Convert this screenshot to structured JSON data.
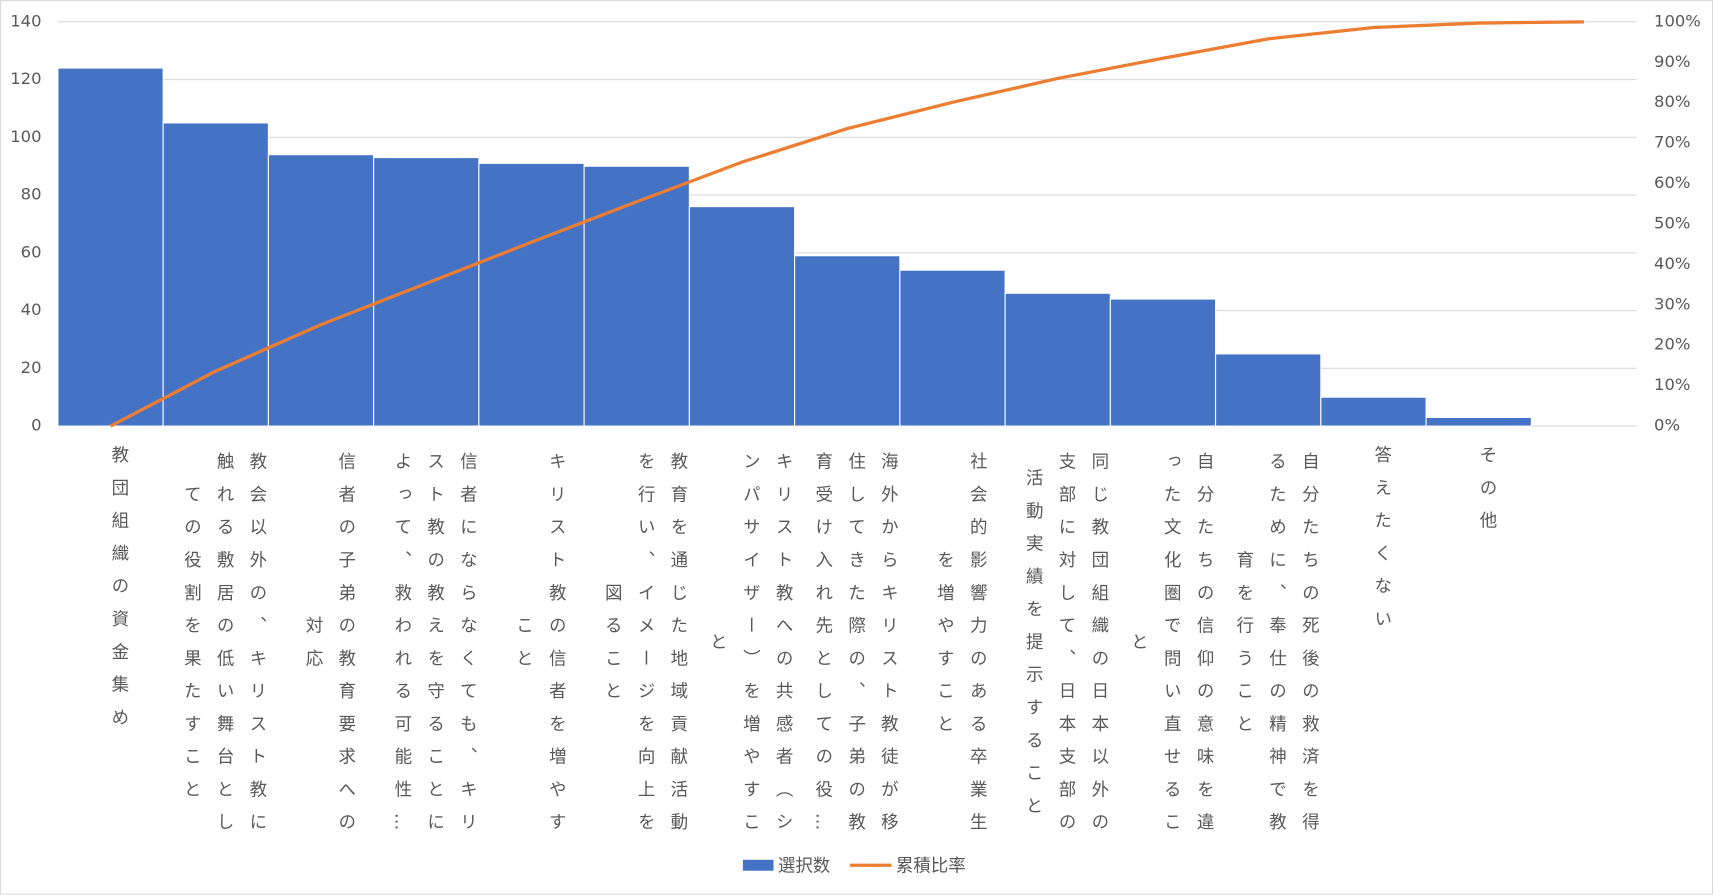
{
  "chart_data": {
    "type": "pareto",
    "categories": [
      "教団組織の資金集め",
      "教会以外の、キリスト教に触れる敷居の低い舞台としての役割を果たすこと",
      "信者の子弟の教育要求への対応",
      "信者にならなくても、キリスト教の教えを守ることによって、救われる可能性…",
      "キリスト教の信者を増やすこと",
      "教育を通じた地域貢献活動を行い、イメージを向上を図ること",
      "キリスト教への共感者（シンパサイザー）を増やすこと",
      "海外からキリスト教徒が移住してきた際の、子弟の教育受け入れ先としての役…",
      "社会的影響力のある卒業生を増やすこと",
      "同じ教団組織の日本以外の支部に対して、日本支部の活動実績を提示すること",
      "自分たちの信仰の意味を違った文化圏で問い直せること",
      "自分たちの死後の救済を得るために、奉仕の精神で教育を行うこと",
      "答えたくない",
      "その他",
      null
    ],
    "series": [
      {
        "name": "選択数",
        "color": "#4472C4",
        "values": [
          124,
          105,
          94,
          93,
          91,
          90,
          76,
          59,
          54,
          46,
          44,
          25,
          10,
          3,
          null
        ]
      },
      {
        "name": "累積比率",
        "color": "#ED7D31",
        "axis": "y2",
        "values": [
          0,
          13.6,
          25.1,
          35.3,
          45.5,
          55.5,
          65.3,
          73.6,
          80.1,
          86.0,
          91.0,
          95.8,
          98.6,
          99.7,
          100
        ]
      }
    ],
    "ylim": [
      0,
      140
    ],
    "yticks": [
      0,
      20,
      40,
      60,
      80,
      100,
      120,
      140
    ],
    "y2lim": [
      0,
      100
    ],
    "y2ticks": [
      {
        "value": 0,
        "label": "0%"
      },
      {
        "value": 10,
        "label": "10%"
      },
      {
        "value": 20,
        "label": "20%"
      },
      {
        "value": 30,
        "label": "30%"
      },
      {
        "value": 40,
        "label": "40%"
      },
      {
        "value": 50,
        "label": "50%"
      },
      {
        "value": 60,
        "label": "60%"
      },
      {
        "value": 70,
        "label": "70%"
      },
      {
        "value": 80,
        "label": "80%"
      },
      {
        "value": 90,
        "label": "90%"
      },
      {
        "value": 100,
        "label": "100%"
      }
    ],
    "grid": true,
    "legend": "bottom"
  }
}
